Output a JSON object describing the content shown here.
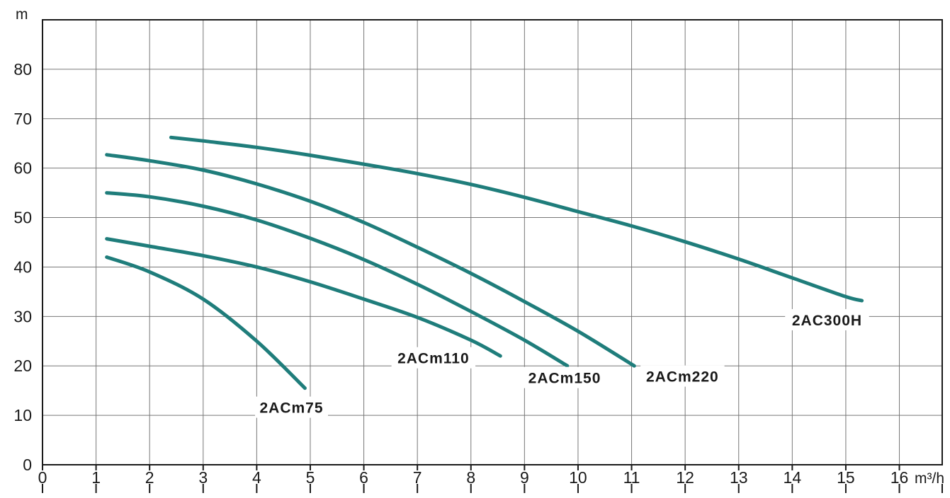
{
  "chart_data": {
    "type": "line",
    "title": "",
    "xlabel": "m³/h",
    "ylabel": "m",
    "xlim": [
      0,
      16.8
    ],
    "ylim": [
      0,
      90
    ],
    "x_ticks": [
      0,
      1,
      2,
      3,
      4,
      5,
      6,
      7,
      8,
      9,
      10,
      11,
      12,
      13,
      14,
      15,
      16
    ],
    "y_ticks": [
      0,
      10,
      20,
      30,
      40,
      50,
      60,
      70,
      80
    ],
    "grid": true,
    "line_color": "#1f7d7b",
    "series": [
      {
        "name": "2ACm75",
        "x": [
          1.2,
          2,
          3,
          4,
          4.9
        ],
        "y": [
          42,
          39,
          33.5,
          25,
          15.5
        ]
      },
      {
        "name": "2ACm110",
        "x": [
          1.2,
          2,
          3,
          4,
          5,
          6,
          7,
          8,
          8.55
        ],
        "y": [
          45.7,
          44.2,
          42.3,
          40,
          37,
          33.5,
          29.8,
          25.2,
          22
        ]
      },
      {
        "name": "2ACm150",
        "x": [
          1.2,
          2,
          3,
          4,
          5,
          6,
          7,
          8,
          9,
          9.8
        ],
        "y": [
          55,
          54.2,
          52.3,
          49.5,
          45.8,
          41.5,
          36.5,
          31,
          25.2,
          20
        ]
      },
      {
        "name": "2ACm220",
        "x": [
          1.2,
          2,
          3,
          4,
          5,
          6,
          7,
          8,
          9,
          10,
          11.05
        ],
        "y": [
          62.7,
          61.5,
          59.6,
          56.8,
          53.3,
          49,
          44,
          38.7,
          33,
          27,
          20
        ]
      },
      {
        "name": "2AC300H",
        "x": [
          2.4,
          3,
          4,
          5,
          6,
          7,
          8,
          9,
          10,
          11,
          12,
          13,
          14,
          15,
          15.3
        ],
        "y": [
          66.2,
          65.5,
          64.2,
          62.6,
          60.8,
          58.9,
          56.7,
          54.1,
          51.2,
          48.3,
          45.1,
          41.6,
          37.8,
          34,
          33.2
        ]
      }
    ],
    "series_labels": [
      {
        "text": "2ACm75",
        "anchor_x": 4.65,
        "anchor_y": 11.5
      },
      {
        "text": "2ACm110",
        "anchor_x": 7.3,
        "anchor_y": 21.5
      },
      {
        "text": "2ACm150",
        "anchor_x": 9.75,
        "anchor_y": 17.5
      },
      {
        "text": "2ACm220",
        "anchor_x": 11.95,
        "anchor_y": 17.8
      },
      {
        "text": "2AC300H",
        "anchor_x": 14.65,
        "anchor_y": 29.2
      }
    ]
  }
}
